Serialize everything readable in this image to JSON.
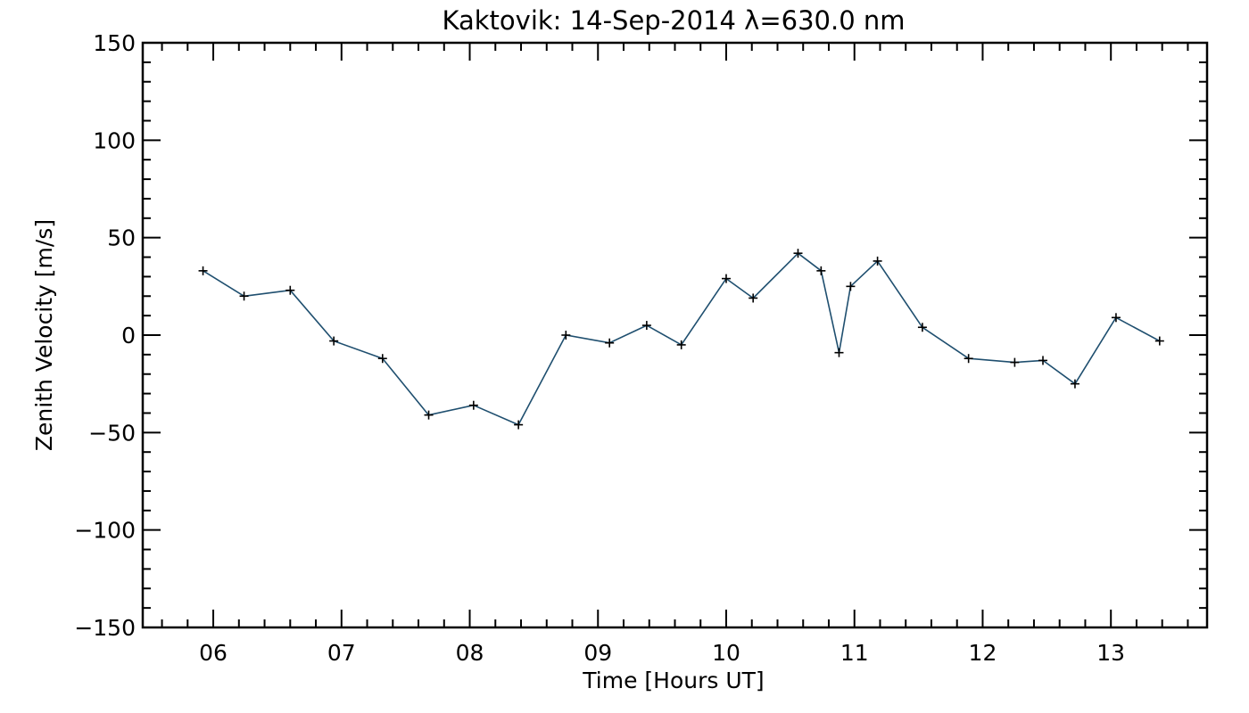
{
  "chart_data": {
    "type": "line",
    "title": "Kaktovik: 14-Sep-2014 λ=630.0 nm",
    "xlabel": "Time [Hours UT]",
    "ylabel": "Zenith Velocity [m/s]",
    "xlim": [
      5.45,
      13.75
    ],
    "ylim": [
      -150,
      150
    ],
    "x_ticks": [
      {
        "value": 6,
        "label": "06"
      },
      {
        "value": 7,
        "label": "07"
      },
      {
        "value": 8,
        "label": "08"
      },
      {
        "value": 9,
        "label": "09"
      },
      {
        "value": 10,
        "label": "10"
      },
      {
        "value": 11,
        "label": "11"
      },
      {
        "value": 12,
        "label": "12"
      },
      {
        "value": 13,
        "label": "13"
      }
    ],
    "y_ticks": [
      {
        "value": 150,
        "label": "150"
      },
      {
        "value": 100,
        "label": "100"
      },
      {
        "value": 50,
        "label": "50"
      },
      {
        "value": 0,
        "label": "0"
      },
      {
        "value": -50,
        "label": "−50"
      },
      {
        "value": -100,
        "label": "−100"
      },
      {
        "value": -150,
        "label": "−150"
      }
    ],
    "grid": false,
    "series": [
      {
        "line_color": "#1f4f6f",
        "marker": "plus",
        "marker_color": "#000000",
        "points": [
          [
            5.92,
            33
          ],
          [
            6.24,
            20
          ],
          [
            6.6,
            23
          ],
          [
            6.94,
            -3
          ],
          [
            7.32,
            -12
          ],
          [
            7.68,
            -41
          ],
          [
            8.03,
            -36
          ],
          [
            8.38,
            -46
          ],
          [
            8.75,
            0
          ],
          [
            9.09,
            -4
          ],
          [
            9.38,
            5
          ],
          [
            9.65,
            -5
          ],
          [
            10.0,
            29
          ],
          [
            10.21,
            19
          ],
          [
            10.56,
            42
          ],
          [
            10.74,
            33
          ],
          [
            10.88,
            -9
          ],
          [
            10.97,
            25
          ],
          [
            11.18,
            38
          ],
          [
            11.53,
            4
          ],
          [
            11.89,
            -12
          ],
          [
            12.25,
            -14
          ],
          [
            12.47,
            -13
          ],
          [
            12.72,
            -25
          ],
          [
            13.04,
            9
          ],
          [
            13.38,
            -3
          ]
        ]
      }
    ]
  }
}
